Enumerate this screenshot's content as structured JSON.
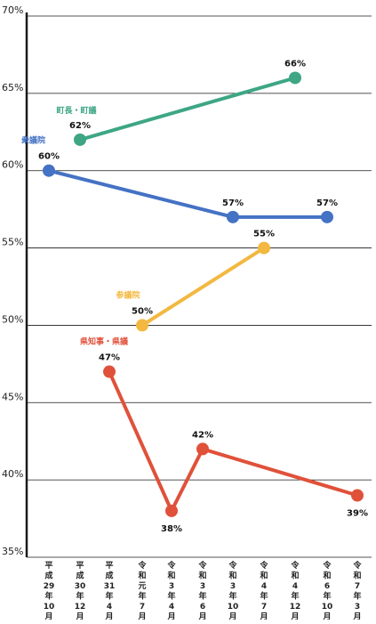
{
  "chart_data": {
    "type": "line",
    "y_unit": "%",
    "ylim": [
      35,
      70
    ],
    "yticks": [
      35,
      40,
      45,
      50,
      55,
      60,
      65,
      70
    ],
    "grid": true,
    "categories": [
      "平成29年10月",
      "平成30年12月",
      "平成31年4月",
      "令和元年7月",
      "令和3年4月",
      "令和3年6月",
      "令和3年10月",
      "令和4年7月",
      "令和4年12月",
      "令和6年10月",
      "令和7年3月"
    ],
    "series": [
      {
        "name": "町長・町議",
        "color": "#3ea685",
        "values": [
          null,
          62,
          null,
          null,
          null,
          null,
          null,
          null,
          66,
          null,
          null
        ]
      },
      {
        "name": "衆議院",
        "color": "#4472c4",
        "values": [
          60,
          null,
          null,
          null,
          null,
          null,
          57,
          null,
          null,
          57,
          null
        ]
      },
      {
        "name": "参議院",
        "color": "#f2b840",
        "values": [
          null,
          null,
          null,
          50,
          null,
          null,
          null,
          55,
          null,
          null,
          null
        ]
      },
      {
        "name": "県知事・県議",
        "color": "#e0513a",
        "values": [
          null,
          null,
          47,
          null,
          38,
          42,
          null,
          null,
          null,
          null,
          39
        ]
      }
    ]
  }
}
